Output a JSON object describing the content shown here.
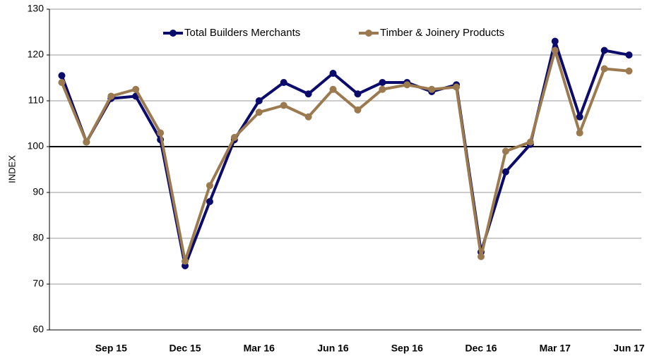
{
  "chart_data": {
    "type": "line",
    "y_label": "INDEX",
    "categories": [
      null,
      null,
      "Sep 15",
      null,
      null,
      "Dec 15",
      null,
      null,
      "Mar 16",
      null,
      null,
      "Jun 16",
      null,
      null,
      "Sep 16",
      null,
      null,
      "Dec 16",
      null,
      null,
      "Mar 17",
      null,
      null,
      "Jun 17"
    ],
    "series": [
      {
        "name": "Total Builders Merchants",
        "color": "#0b0b6b",
        "values": [
          115.5,
          101,
          110.5,
          111,
          101.5,
          74,
          88,
          101.5,
          110,
          114,
          111.5,
          116,
          111.5,
          114,
          114,
          112,
          113.5,
          77,
          94.5,
          100.5,
          123,
          106.5,
          121,
          120
        ]
      },
      {
        "name": "Timber & Joinery Products",
        "color": "#9c7a4f",
        "values": [
          114,
          101,
          111,
          112.5,
          103,
          75,
          91.5,
          102,
          107.5,
          109,
          106.5,
          112.5,
          108,
          112.5,
          113.5,
          112.5,
          113,
          76,
          99,
          101,
          121,
          103,
          117,
          116.5
        ]
      }
    ],
    "ylim": [
      60,
      130
    ],
    "yticks": [
      60,
      70,
      80,
      90,
      100,
      110,
      120,
      130
    ],
    "reference_line": 100,
    "grid": true,
    "legend": "top"
  }
}
